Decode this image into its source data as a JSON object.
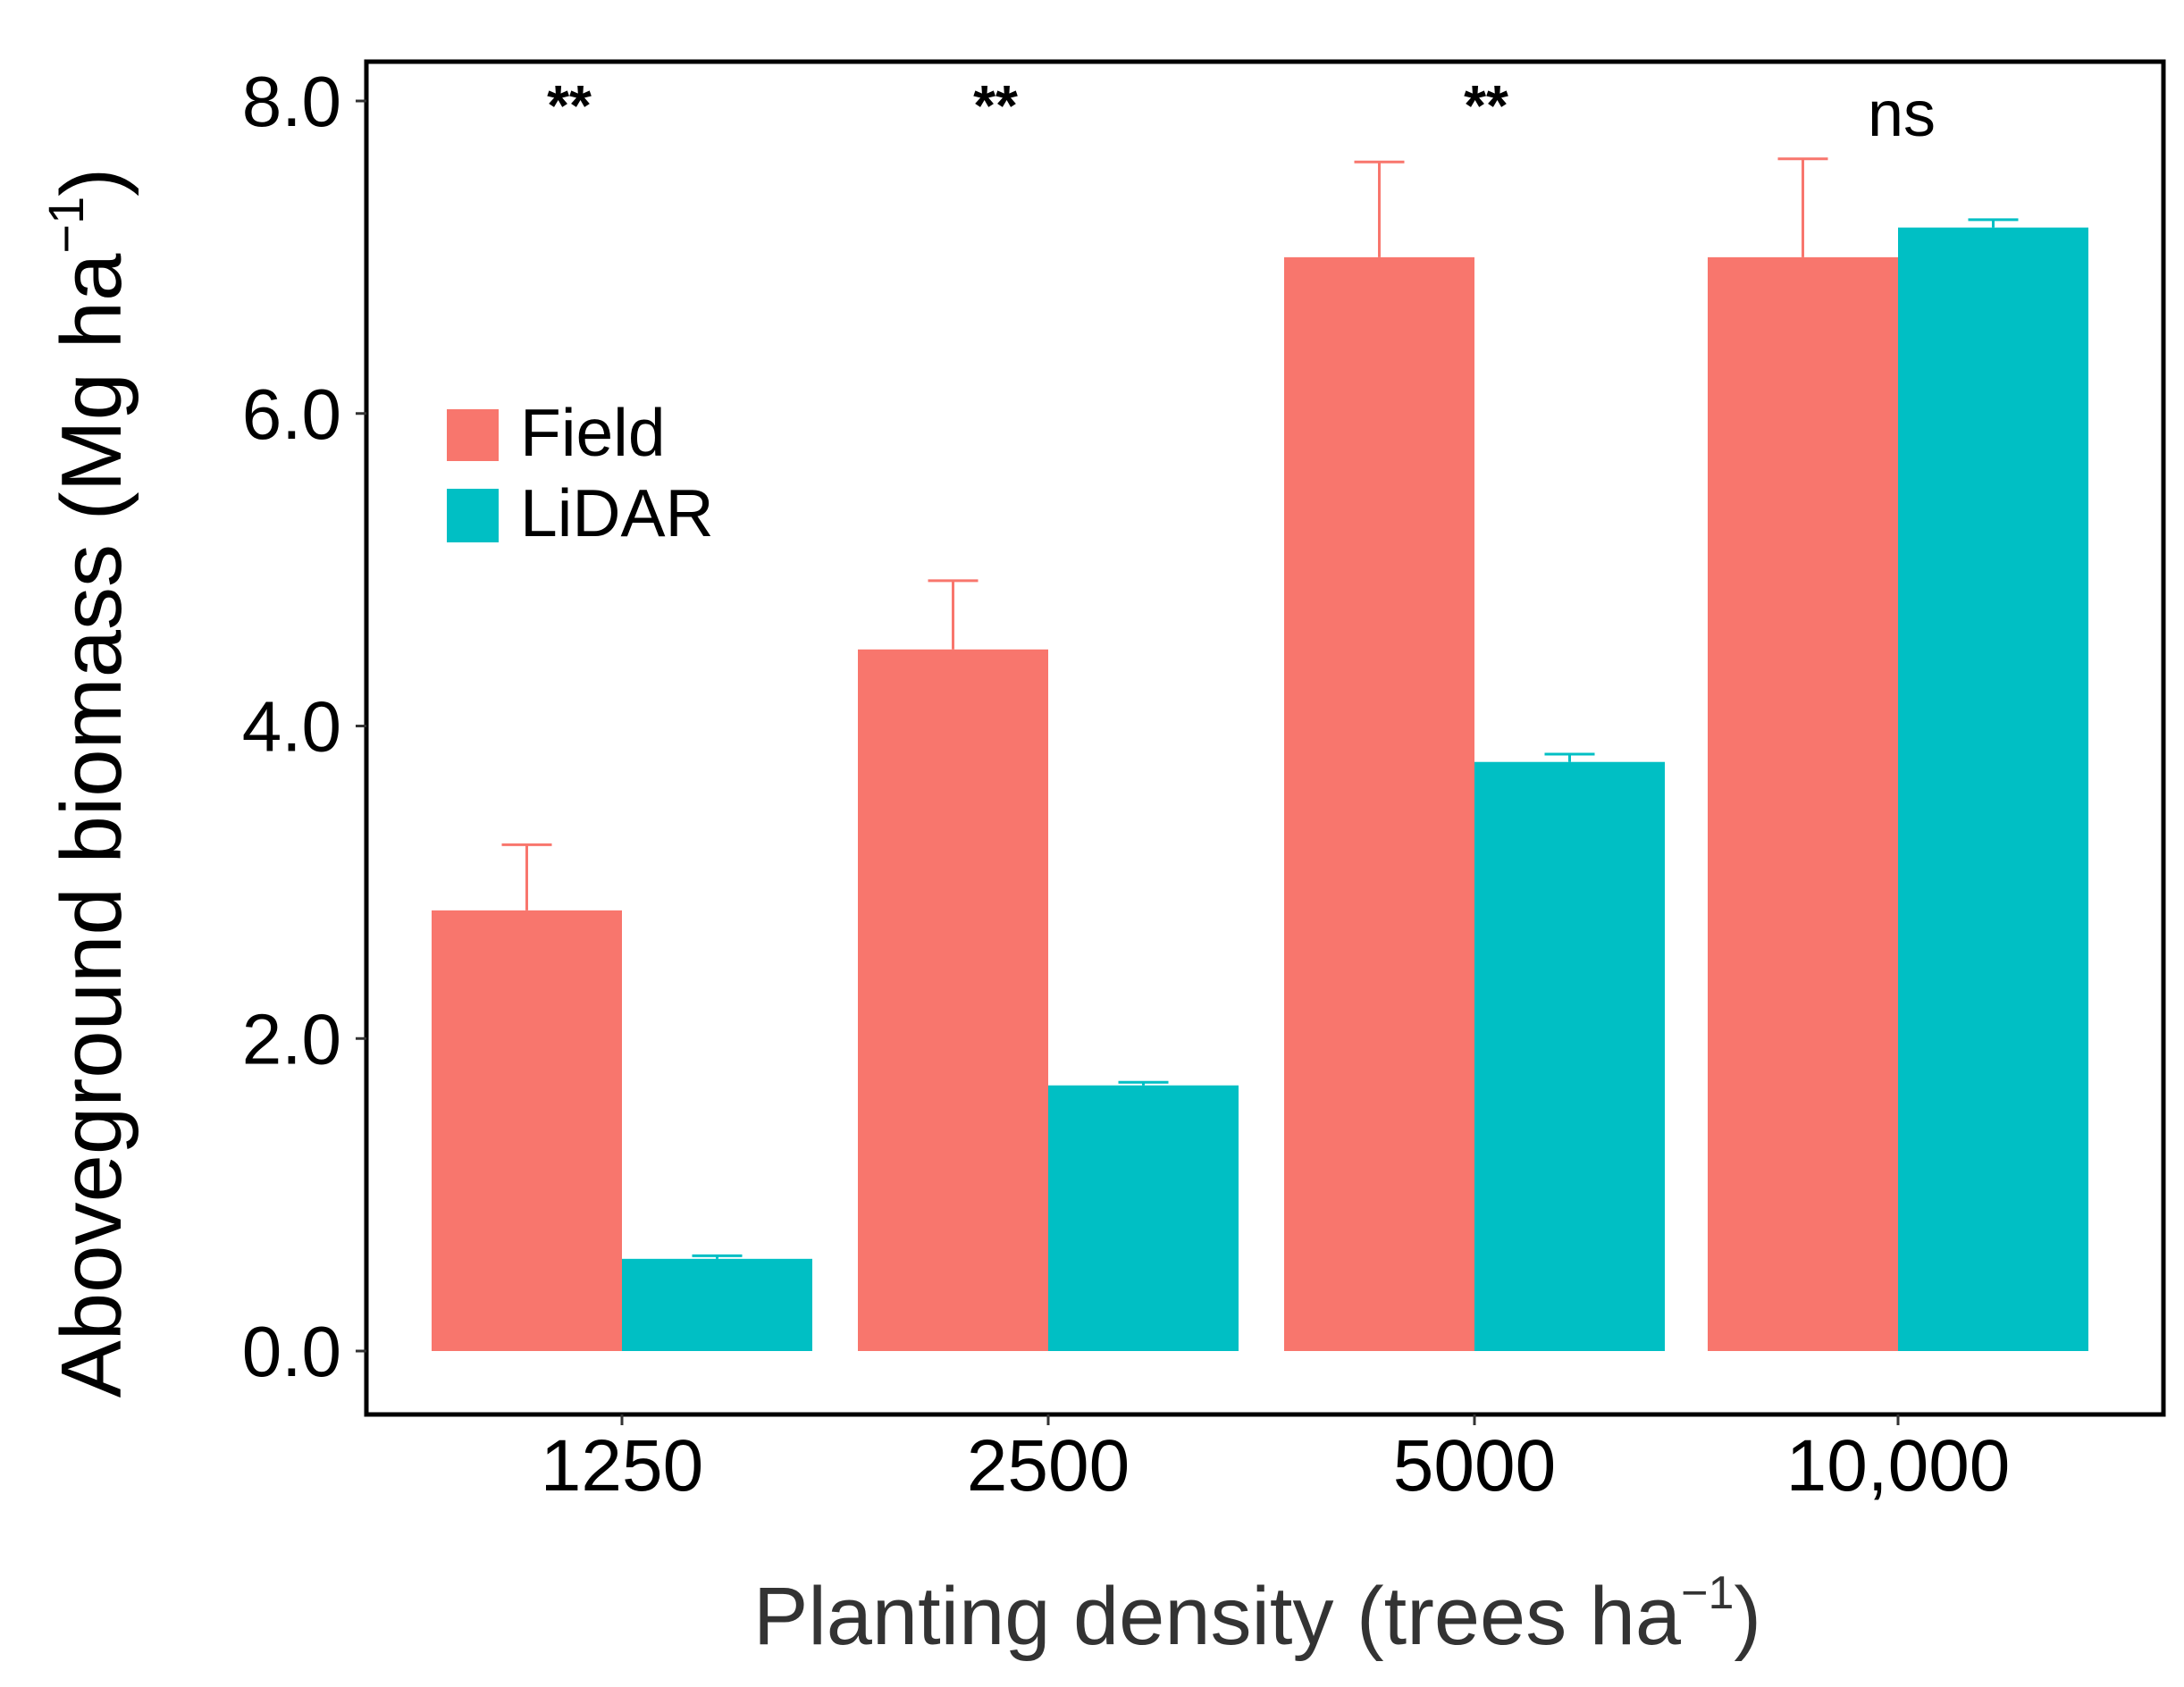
{
  "chart_data": {
    "type": "bar",
    "title": "",
    "xlabel": "Planting density (trees ha",
    "xlabel_sup": "−1",
    "xlabel_end": ")",
    "ylabel": "Aboveground biomass (Mg ha",
    "ylabel_sup": "−1",
    "ylabel_end": ")",
    "categories": [
      "1250",
      "2500",
      "5000",
      "10,000"
    ],
    "ylim": [
      0,
      8
    ],
    "yticks": [
      "0.0",
      "2.0",
      "4.0",
      "6.0",
      "8.0"
    ],
    "ytick_values": [
      0,
      2,
      4,
      6,
      8
    ],
    "legend_position": "top-left",
    "grid": false,
    "series": [
      {
        "name": "Field",
        "color": "#F8766D",
        "values": [
          2.82,
          4.49,
          7.0,
          7.0
        ],
        "error_upper": [
          3.24,
          4.93,
          7.61,
          7.63
        ]
      },
      {
        "name": "LiDAR",
        "color": "#00BFC4",
        "values": [
          0.59,
          1.7,
          3.77,
          7.19
        ],
        "error_upper": [
          0.61,
          1.72,
          3.82,
          7.24
        ]
      }
    ],
    "significance": [
      "**",
      "**",
      "**",
      "ns"
    ]
  }
}
